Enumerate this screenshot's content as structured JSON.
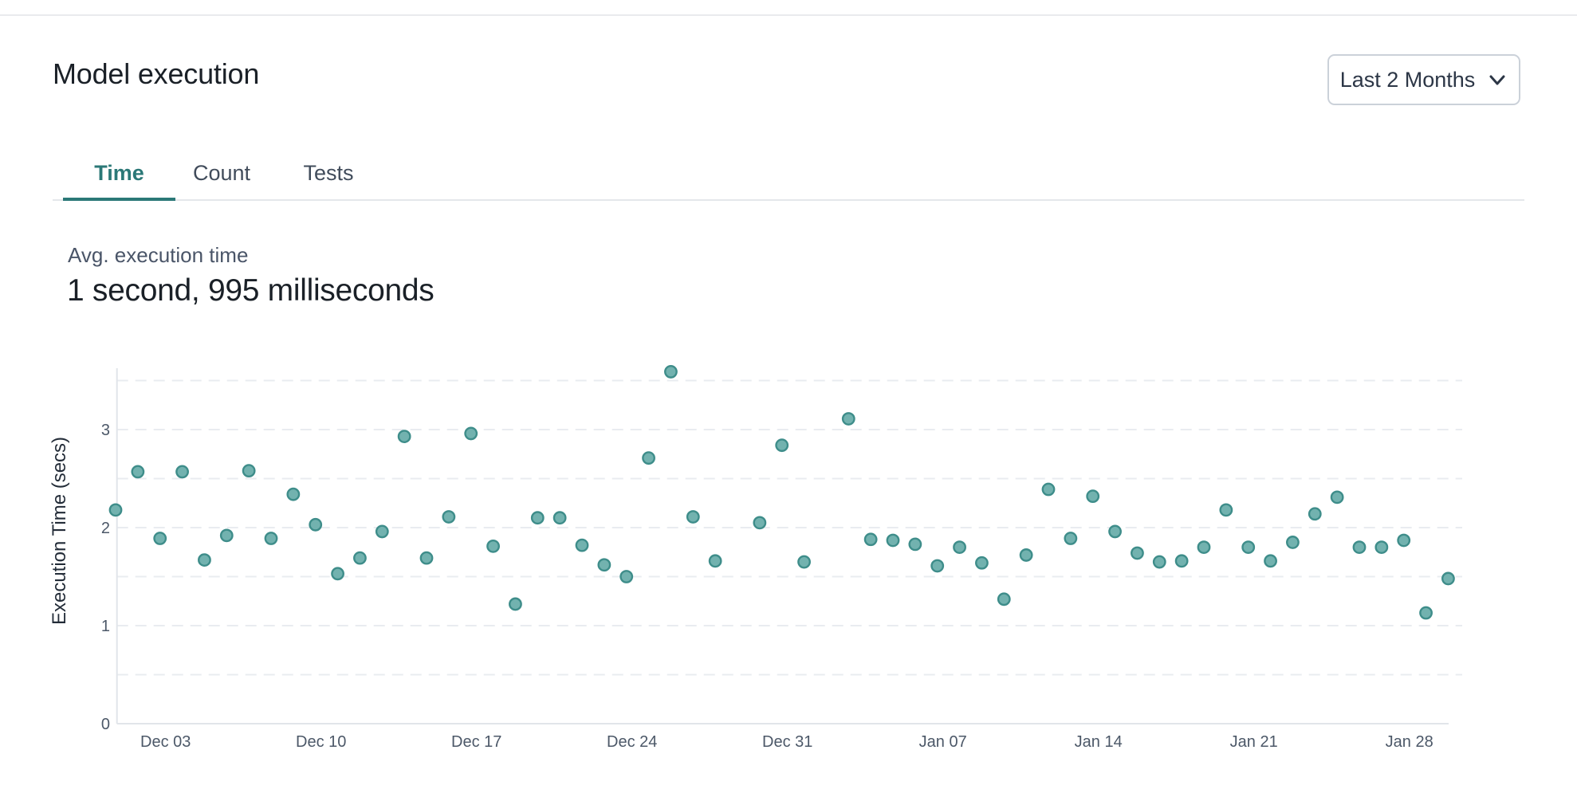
{
  "header": {
    "title": "Model execution",
    "range_selector": {
      "label": "Last 2 Months"
    }
  },
  "tabs": {
    "items": [
      {
        "label": "Time",
        "active": true
      },
      {
        "label": "Count",
        "active": false
      },
      {
        "label": "Tests",
        "active": false
      }
    ]
  },
  "stat": {
    "label": "Avg. execution time",
    "value": "1 second, 995 milliseconds"
  },
  "colors": {
    "accent_teal": "#2B7877",
    "point_fill": "#72B2AF",
    "point_stroke": "#3E8D8A",
    "tick_text": "#4C5868"
  },
  "chart_data": {
    "type": "scatter",
    "title": "",
    "xlabel": "",
    "ylabel": "Execution Time (secs)",
    "ylim": [
      0,
      3.63
    ],
    "y_ticks": [
      0,
      1,
      2,
      3
    ],
    "grid": "horizontal dashed lines every 0.5",
    "legend": "none",
    "point_color": "#72B2AF",
    "point_stroke": "#3E8D8A",
    "x_tick_labels": [
      "Dec 03",
      "Dec 10",
      "Dec 17",
      "Dec 24",
      "Dec 31",
      "Jan 07",
      "Jan 14",
      "Jan 21",
      "Jan 28"
    ],
    "points": [
      {
        "date": "Nov 30",
        "value": 2.18
      },
      {
        "date": "Dec 01",
        "value": 2.57
      },
      {
        "date": "Dec 02",
        "value": 1.89
      },
      {
        "date": "Dec 03",
        "value": 2.57
      },
      {
        "date": "Dec 04",
        "value": 1.67
      },
      {
        "date": "Dec 05",
        "value": 1.92
      },
      {
        "date": "Dec 06",
        "value": 2.58
      },
      {
        "date": "Dec 07",
        "value": 1.89
      },
      {
        "date": "Dec 08",
        "value": 2.34
      },
      {
        "date": "Dec 09",
        "value": 2.03
      },
      {
        "date": "Dec 10",
        "value": 1.53
      },
      {
        "date": "Dec 11",
        "value": 1.69
      },
      {
        "date": "Dec 12",
        "value": 1.96
      },
      {
        "date": "Dec 13",
        "value": 2.93
      },
      {
        "date": "Dec 14",
        "value": 1.69
      },
      {
        "date": "Dec 15",
        "value": 2.11
      },
      {
        "date": "Dec 16",
        "value": 2.96
      },
      {
        "date": "Dec 17",
        "value": 1.81
      },
      {
        "date": "Dec 18",
        "value": 1.22
      },
      {
        "date": "Dec 19",
        "value": 2.1
      },
      {
        "date": "Dec 20",
        "value": 2.1
      },
      {
        "date": "Dec 21",
        "value": 1.82
      },
      {
        "date": "Dec 22",
        "value": 1.62
      },
      {
        "date": "Dec 23",
        "value": 1.5
      },
      {
        "date": "Dec 24",
        "value": 2.71
      },
      {
        "date": "Dec 25",
        "value": 3.59
      },
      {
        "date": "Dec 26",
        "value": 2.11
      },
      {
        "date": "Dec 27",
        "value": 1.66
      },
      {
        "date": "Dec 28",
        "value": null
      },
      {
        "date": "Dec 29",
        "value": 2.05
      },
      {
        "date": "Dec 30",
        "value": 2.84
      },
      {
        "date": "Dec 31",
        "value": 1.65
      },
      {
        "date": "Jan 01",
        "value": null
      },
      {
        "date": "Jan 02",
        "value": 3.11
      },
      {
        "date": "Jan 03",
        "value": 1.88
      },
      {
        "date": "Jan 04",
        "value": 1.87
      },
      {
        "date": "Jan 05",
        "value": 1.83
      },
      {
        "date": "Jan 06",
        "value": 1.61
      },
      {
        "date": "Jan 07",
        "value": 1.8
      },
      {
        "date": "Jan 08",
        "value": 1.64
      },
      {
        "date": "Jan 09",
        "value": 1.27
      },
      {
        "date": "Jan 10",
        "value": 1.72
      },
      {
        "date": "Jan 11",
        "value": 2.39
      },
      {
        "date": "Jan 12",
        "value": 1.89
      },
      {
        "date": "Jan 13",
        "value": 2.32
      },
      {
        "date": "Jan 14",
        "value": 1.96
      },
      {
        "date": "Jan 15",
        "value": 1.74
      },
      {
        "date": "Jan 16",
        "value": 1.65
      },
      {
        "date": "Jan 17",
        "value": 1.66
      },
      {
        "date": "Jan 18",
        "value": 1.8
      },
      {
        "date": "Jan 19",
        "value": 2.18
      },
      {
        "date": "Jan 20",
        "value": 1.8
      },
      {
        "date": "Jan 21",
        "value": 1.66
      },
      {
        "date": "Jan 22",
        "value": 1.85
      },
      {
        "date": "Jan 23",
        "value": 2.14
      },
      {
        "date": "Jan 24",
        "value": 2.31
      },
      {
        "date": "Jan 25",
        "value": 1.8
      },
      {
        "date": "Jan 26",
        "value": 1.8
      },
      {
        "date": "Jan 27",
        "value": 1.87
      },
      {
        "date": "Jan 28",
        "value": 1.13
      },
      {
        "date": "Jan 29",
        "value": 1.48
      }
    ]
  }
}
